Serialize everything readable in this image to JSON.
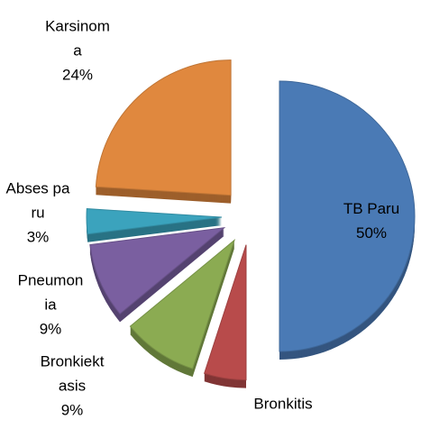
{
  "chart_data": {
    "type": "pie",
    "categories": [
      "TB Paru",
      "Bronkitis",
      "Bronkiektasis",
      "Pneumonia",
      "Abses paru",
      "Karsinoma"
    ],
    "values": [
      50,
      5,
      9,
      9,
      3,
      24
    ],
    "value_labels": [
      "50%",
      null,
      "9%",
      "9%",
      "3%",
      "24%"
    ],
    "colors": [
      "#4a7ab5",
      "#b84b4b",
      "#8bab52",
      "#7a5fa0",
      "#3ba3bd",
      "#e0883e"
    ]
  }
}
